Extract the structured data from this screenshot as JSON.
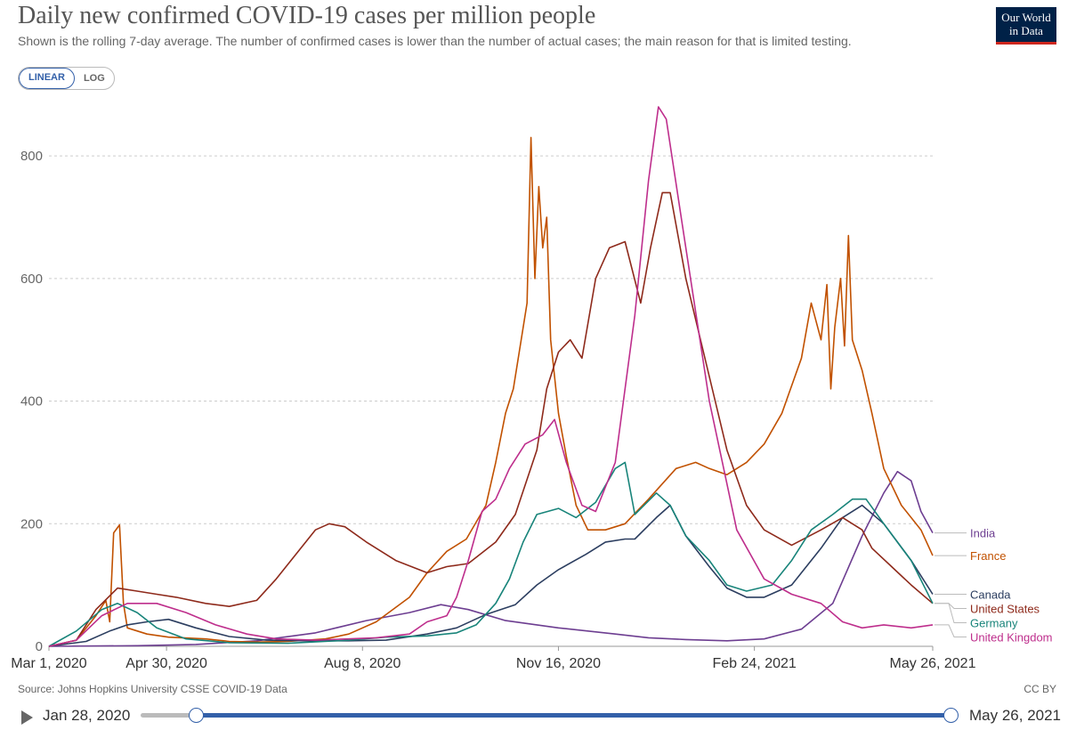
{
  "header": {
    "title": "Daily new confirmed COVID-19 cases per million people",
    "subtitle": "Shown is the rolling 7-day average. The number of confirmed cases is lower than the number of actual cases; the main reason for that is limited testing.",
    "logo_line1": "Our World",
    "logo_line2": "in Data"
  },
  "controls": {
    "linear_label": "LINEAR",
    "log_label": "LOG",
    "active": "LINEAR"
  },
  "footer": {
    "source": "Source: Johns Hopkins University CSSE COVID-19 Data",
    "license": "CC BY"
  },
  "timeline": {
    "start_label": "Jan 28, 2020",
    "end_label": "May 26, 2021",
    "range_start": "Mar 1, 2020",
    "range_end": "May 26, 2021"
  },
  "chart_data": {
    "type": "line",
    "title": "Daily new confirmed COVID-19 cases per million people",
    "y_scale": "linear",
    "ylim": [
      0,
      880
    ],
    "yticks": [
      0,
      200,
      400,
      600,
      800
    ],
    "xlim": [
      "2020-03-01",
      "2021-05-26"
    ],
    "xticks": [
      {
        "date": "2020-03-01",
        "label": "Mar 1, 2020"
      },
      {
        "date": "2020-04-30",
        "label": "Apr 30, 2020"
      },
      {
        "date": "2020-08-08",
        "label": "Aug 8, 2020"
      },
      {
        "date": "2020-11-16",
        "label": "Nov 16, 2020"
      },
      {
        "date": "2021-02-24",
        "label": "Feb 24, 2021"
      },
      {
        "date": "2021-05-26",
        "label": "May 26, 2021"
      }
    ],
    "grid": true,
    "legend": "right-end labels",
    "series": [
      {
        "name": "India",
        "color": "#6d3e91",
        "points": [
          [
            "2020-03-01",
            0
          ],
          [
            "2020-04-15",
            1
          ],
          [
            "2020-05-15",
            3
          ],
          [
            "2020-06-15",
            9
          ],
          [
            "2020-07-15",
            22
          ],
          [
            "2020-08-10",
            42
          ],
          [
            "2020-09-01",
            55
          ],
          [
            "2020-09-17",
            68
          ],
          [
            "2020-10-01",
            60
          ],
          [
            "2020-10-20",
            42
          ],
          [
            "2020-11-16",
            30
          ],
          [
            "2020-12-15",
            20
          ],
          [
            "2021-01-01",
            14
          ],
          [
            "2021-01-20",
            11
          ],
          [
            "2021-02-10",
            9
          ],
          [
            "2021-03-01",
            12
          ],
          [
            "2021-03-20",
            28
          ],
          [
            "2021-04-05",
            70
          ],
          [
            "2021-04-20",
            180
          ],
          [
            "2021-05-01",
            250
          ],
          [
            "2021-05-08",
            285
          ],
          [
            "2021-05-15",
            270
          ],
          [
            "2021-05-20",
            220
          ],
          [
            "2021-05-26",
            185
          ]
        ]
      },
      {
        "name": "France",
        "color": "#c15100",
        "points": [
          [
            "2020-03-01",
            0
          ],
          [
            "2020-03-15",
            10
          ],
          [
            "2020-03-25",
            50
          ],
          [
            "2020-03-30",
            75
          ],
          [
            "2020-04-01",
            40
          ],
          [
            "2020-04-03",
            185
          ],
          [
            "2020-04-06",
            198
          ],
          [
            "2020-04-08",
            70
          ],
          [
            "2020-04-10",
            30
          ],
          [
            "2020-04-20",
            20
          ],
          [
            "2020-05-01",
            15
          ],
          [
            "2020-05-20",
            12
          ],
          [
            "2020-06-01",
            8
          ],
          [
            "2020-06-15",
            7
          ],
          [
            "2020-07-01",
            8
          ],
          [
            "2020-07-20",
            12
          ],
          [
            "2020-08-01",
            20
          ],
          [
            "2020-08-15",
            40
          ],
          [
            "2020-09-01",
            80
          ],
          [
            "2020-09-10",
            120
          ],
          [
            "2020-09-20",
            155
          ],
          [
            "2020-09-30",
            175
          ],
          [
            "2020-10-10",
            230
          ],
          [
            "2020-10-15",
            300
          ],
          [
            "2020-10-20",
            380
          ],
          [
            "2020-10-24",
            420
          ],
          [
            "2020-10-28",
            500
          ],
          [
            "2020-10-31",
            560
          ],
          [
            "2020-11-02",
            830
          ],
          [
            "2020-11-04",
            600
          ],
          [
            "2020-11-06",
            750
          ],
          [
            "2020-11-08",
            650
          ],
          [
            "2020-11-10",
            700
          ],
          [
            "2020-11-12",
            500
          ],
          [
            "2020-11-16",
            380
          ],
          [
            "2020-11-20",
            310
          ],
          [
            "2020-11-25",
            230
          ],
          [
            "2020-12-01",
            190
          ],
          [
            "2020-12-10",
            190
          ],
          [
            "2020-12-20",
            200
          ],
          [
            "2021-01-01",
            240
          ],
          [
            "2021-01-15",
            290
          ],
          [
            "2021-01-25",
            300
          ],
          [
            "2021-02-01",
            290
          ],
          [
            "2021-02-10",
            280
          ],
          [
            "2021-02-20",
            300
          ],
          [
            "2021-03-01",
            330
          ],
          [
            "2021-03-10",
            380
          ],
          [
            "2021-03-20",
            470
          ],
          [
            "2021-03-25",
            560
          ],
          [
            "2021-03-30",
            500
          ],
          [
            "2021-04-02",
            590
          ],
          [
            "2021-04-04",
            420
          ],
          [
            "2021-04-06",
            520
          ],
          [
            "2021-04-09",
            600
          ],
          [
            "2021-04-11",
            490
          ],
          [
            "2021-04-13",
            670
          ],
          [
            "2021-04-15",
            500
          ],
          [
            "2021-04-20",
            450
          ],
          [
            "2021-04-25",
            380
          ],
          [
            "2021-05-01",
            290
          ],
          [
            "2021-05-10",
            230
          ],
          [
            "2021-05-20",
            190
          ],
          [
            "2021-05-26",
            148
          ]
        ]
      },
      {
        "name": "Canada",
        "color": "#2c3e60",
        "points": [
          [
            "2020-03-01",
            0
          ],
          [
            "2020-03-20",
            8
          ],
          [
            "2020-04-01",
            25
          ],
          [
            "2020-04-10",
            35
          ],
          [
            "2020-04-20",
            40
          ],
          [
            "2020-05-01",
            44
          ],
          [
            "2020-05-15",
            30
          ],
          [
            "2020-06-01",
            16
          ],
          [
            "2020-06-20",
            10
          ],
          [
            "2020-07-10",
            9
          ],
          [
            "2020-08-01",
            9
          ],
          [
            "2020-08-20",
            10
          ],
          [
            "2020-09-10",
            20
          ],
          [
            "2020-09-25",
            30
          ],
          [
            "2020-10-10",
            52
          ],
          [
            "2020-10-25",
            68
          ],
          [
            "2020-11-05",
            100
          ],
          [
            "2020-11-16",
            125
          ],
          [
            "2020-11-30",
            150
          ],
          [
            "2020-12-10",
            170
          ],
          [
            "2020-12-20,",
            175
          ],
          [
            "2020-12-25",
            175
          ],
          [
            "2021-01-05",
            210
          ],
          [
            "2021-01-12",
            230
          ],
          [
            "2021-01-20",
            180
          ],
          [
            "2021-02-01",
            130
          ],
          [
            "2021-02-10",
            95
          ],
          [
            "2021-02-20",
            80
          ],
          [
            "2021-03-01",
            80
          ],
          [
            "2021-03-15",
            100
          ],
          [
            "2021-03-30",
            160
          ],
          [
            "2021-04-10",
            210
          ],
          [
            "2021-04-20",
            230
          ],
          [
            "2021-05-01",
            200
          ],
          [
            "2021-05-15",
            140
          ],
          [
            "2021-05-26",
            85
          ]
        ]
      },
      {
        "name": "United States",
        "color": "#8e2a1b",
        "points": [
          [
            "2020-03-01",
            0
          ],
          [
            "2020-03-15",
            10
          ],
          [
            "2020-03-25",
            60
          ],
          [
            "2020-04-05",
            95
          ],
          [
            "2020-04-15",
            90
          ],
          [
            "2020-04-25",
            85
          ],
          [
            "2020-05-05",
            80
          ],
          [
            "2020-05-20",
            70
          ],
          [
            "2020-06-01",
            65
          ],
          [
            "2020-06-15",
            75
          ],
          [
            "2020-06-25",
            110
          ],
          [
            "2020-07-05",
            150
          ],
          [
            "2020-07-15",
            190
          ],
          [
            "2020-07-22",
            200
          ],
          [
            "2020-07-30",
            195
          ],
          [
            "2020-08-10",
            170
          ],
          [
            "2020-08-25",
            140
          ],
          [
            "2020-09-10",
            120
          ],
          [
            "2020-09-20",
            130
          ],
          [
            "2020-10-01",
            135
          ],
          [
            "2020-10-15",
            170
          ],
          [
            "2020-10-25",
            215
          ],
          [
            "2020-11-05",
            320
          ],
          [
            "2020-11-10",
            420
          ],
          [
            "2020-11-16",
            480
          ],
          [
            "2020-11-22",
            500
          ],
          [
            "2020-11-28",
            470
          ],
          [
            "2020-12-05",
            600
          ],
          [
            "2020-12-12",
            650
          ],
          [
            "2020-12-20",
            660
          ],
          [
            "2020-12-28",
            560
          ],
          [
            "2021-01-02",
            650
          ],
          [
            "2021-01-08",
            740
          ],
          [
            "2021-01-12",
            740
          ],
          [
            "2021-01-20",
            600
          ],
          [
            "2021-02-01",
            440
          ],
          [
            "2021-02-10",
            320
          ],
          [
            "2021-02-20",
            230
          ],
          [
            "2021-03-01",
            190
          ],
          [
            "2021-03-15",
            165
          ],
          [
            "2021-03-30",
            190
          ],
          [
            "2021-04-10",
            210
          ],
          [
            "2021-04-20,",
            190
          ],
          [
            "2021-04-25",
            160
          ],
          [
            "2021-05-05",
            130
          ],
          [
            "2021-05-15",
            100
          ],
          [
            "2021-05-26",
            70
          ]
        ]
      },
      {
        "name": "Germany",
        "color": "#18847a",
        "points": [
          [
            "2020-03-01",
            0
          ],
          [
            "2020-03-15",
            25
          ],
          [
            "2020-03-28",
            60
          ],
          [
            "2020-04-05",
            70
          ],
          [
            "2020-04-15",
            55
          ],
          [
            "2020-04-25",
            30
          ],
          [
            "2020-05-10",
            12
          ],
          [
            "2020-06-01",
            6
          ],
          [
            "2020-07-01",
            5
          ],
          [
            "2020-08-01",
            10
          ],
          [
            "2020-08-20",
            15
          ],
          [
            "2020-09-10",
            17
          ],
          [
            "2020-09-25",
            22
          ],
          [
            "2020-10-05",
            35
          ],
          [
            "2020-10-15",
            70
          ],
          [
            "2020-10-22",
            110
          ],
          [
            "2020-10-29",
            170
          ],
          [
            "2020-11-05",
            215
          ],
          [
            "2020-11-16",
            225
          ],
          [
            "2020-11-25",
            210
          ],
          [
            "2020-12-05",
            235
          ],
          [
            "2020-12-15",
            290
          ],
          [
            "2020-12-20",
            300
          ],
          [
            "2020-12-25",
            215
          ],
          [
            "2021-01-05",
            250
          ],
          [
            "2021-01-12",
            230
          ],
          [
            "2021-01-20",
            180
          ],
          [
            "2021-02-01",
            140
          ],
          [
            "2021-02-10",
            100
          ],
          [
            "2021-02-20",
            90
          ],
          [
            "2021-03-05",
            100
          ],
          [
            "2021-03-15",
            140
          ],
          [
            "2021-03-25",
            190
          ],
          [
            "2021-04-05",
            215
          ],
          [
            "2021-04-15",
            240
          ],
          [
            "2021-04-22",
            240
          ],
          [
            "2021-05-01",
            200
          ],
          [
            "2021-05-15",
            140
          ],
          [
            "2021-05-26",
            70
          ]
        ]
      },
      {
        "name": "United Kingdom",
        "color": "#be2e8c",
        "points": [
          [
            "2020-03-01",
            0
          ],
          [
            "2020-03-15",
            10
          ],
          [
            "2020-03-28",
            50
          ],
          [
            "2020-04-10",
            70
          ],
          [
            "2020-04-25",
            70
          ],
          [
            "2020-05-10",
            55
          ],
          [
            "2020-05-25",
            35
          ],
          [
            "2020-06-10",
            20
          ],
          [
            "2020-06-25",
            12
          ],
          [
            "2020-07-15",
            10
          ],
          [
            "2020-08-15",
            14
          ],
          [
            "2020-09-01",
            20
          ],
          [
            "2020-09-10",
            40
          ],
          [
            "2020-09-20,",
            50
          ],
          [
            "2020-09-25",
            80
          ],
          [
            "2020-10-01",
            140
          ],
          [
            "2020-10-08",
            220
          ],
          [
            "2020-10-15",
            240
          ],
          [
            "2020-10-22",
            290
          ],
          [
            "2020-10-30",
            330
          ],
          [
            "2020-11-08",
            345
          ],
          [
            "2020-11-14",
            370
          ],
          [
            "2020-11-20",
            300
          ],
          [
            "2020-11-28",
            230
          ],
          [
            "2020-12-05",
            220
          ],
          [
            "2020-12-15",
            300
          ],
          [
            "2020-12-25",
            540
          ],
          [
            "2021-01-01",
            760
          ],
          [
            "2021-01-06",
            880
          ],
          [
            "2021-01-10",
            860
          ],
          [
            "2021-01-20",
            650
          ],
          [
            "2021-02-01",
            400
          ],
          [
            "2021-02-15",
            190
          ],
          [
            "2021-03-01",
            110
          ],
          [
            "2021-03-15",
            85
          ],
          [
            "2021-03-30",
            70
          ],
          [
            "2021-04-10",
            40
          ],
          [
            "2021-04-20",
            30
          ],
          [
            "2021-05-01",
            35
          ],
          [
            "2021-05-15",
            30
          ],
          [
            "2021-05-26",
            35
          ]
        ]
      }
    ]
  }
}
